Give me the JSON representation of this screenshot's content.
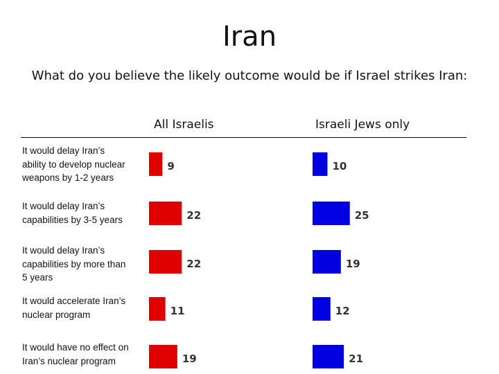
{
  "title": "Iran",
  "subtitle": "What do you believe the likely outcome would be if Israel strikes Iran:",
  "chart_data": {
    "type": "bar",
    "orientation": "horizontal",
    "categories": [
      "It would delay Iran's ability to develop nuclear weapons by 1-2 years",
      "It would delay Iran's capabilities by 3-5 years",
      "It would delay Iran's capabilities by more than 5 years",
      "It would accelerate Iran's nuclear program",
      "It would have no effect on Iran's nuclear program"
    ],
    "category_lines": [
      [
        "It would delay Iran’s",
        "ability to develop nuclear",
        "weapons by 1-2 years"
      ],
      [
        "It would delay Iran’s",
        "capabilities by 3-5 years"
      ],
      [
        "It would delay Iran’s",
        "capabilities by more than",
        "5 years"
      ],
      [
        "It would accelerate Iran’s",
        "nuclear program"
      ],
      [
        "It would have no effect on",
        "Iran’s nuclear program"
      ]
    ],
    "series": [
      {
        "name": "All Israelis",
        "values": [
          9,
          22,
          22,
          11,
          19
        ],
        "color": "#e00000"
      },
      {
        "name": "Israeli Jews only",
        "values": [
          10,
          25,
          19,
          12,
          21
        ],
        "color": "#0000e0"
      }
    ],
    "data_labels": true,
    "grid": false
  }
}
